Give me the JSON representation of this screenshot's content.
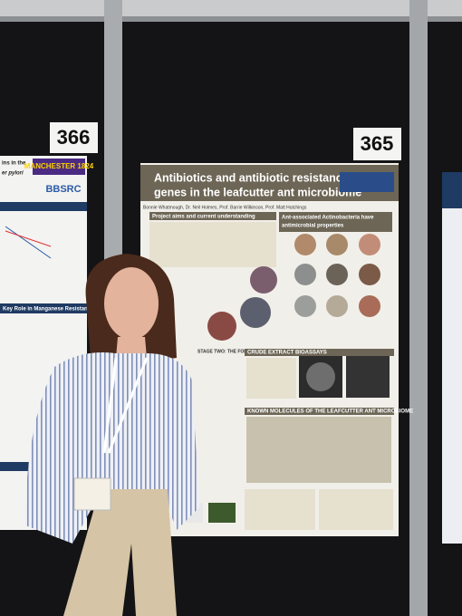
{
  "board_numbers": [
    "366",
    "365"
  ],
  "poster": {
    "title_lines": [
      "Antibiotics and antibiotic resistance",
      "genes in the leafcutter ant microbiome"
    ],
    "authors": "Bonnie Whatmough, Dr. Neil Holmes, Prof. Barrie Wilkinson, Prof. Matt Hutchings",
    "sections": [
      "Project aims and current understanding",
      "Ant-associated Actinobacteria have",
      "antimicrobial properties",
      "STAGE TWO: THE FORWARD PLAN",
      "CRUDE EXTRACT BIOASSAYS",
      "KNOWN MOLECULES OF THE LEAFCUTTER ANT MICROBIOME"
    ]
  },
  "left_poster": {
    "heading_lines": [
      "ins in the",
      "er pylori"
    ],
    "logos": [
      "MANCHESTER 1824",
      "BBSRC"
    ],
    "section": "Key Role in Manganese Resistance"
  }
}
